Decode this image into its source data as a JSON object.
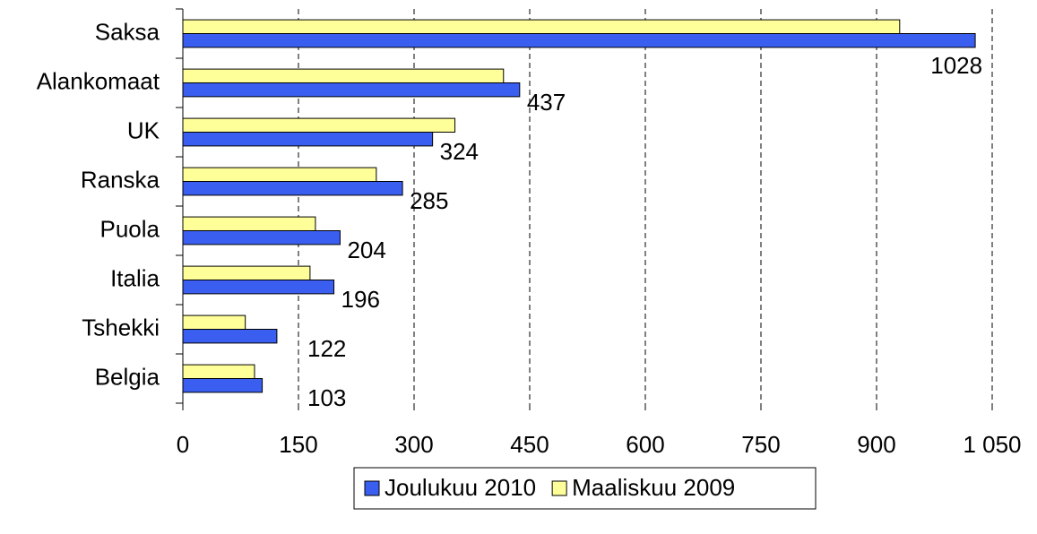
{
  "chart_data": {
    "type": "bar",
    "orientation": "horizontal",
    "categories": [
      "Saksa",
      "Alankomaat",
      "UK",
      "Ranska",
      "Puola",
      "Italia",
      "Tshekki",
      "Belgia"
    ],
    "series": [
      {
        "name": "Joulukuu 2010",
        "color": "#3a5ef0",
        "values": [
          1028,
          437,
          324,
          285,
          204,
          196,
          122,
          103
        ],
        "data_labels": true
      },
      {
        "name": "Maaliskuu 2009",
        "color": "#ffff99",
        "values": [
          930,
          416,
          353,
          251,
          172,
          165,
          81,
          93
        ]
      }
    ],
    "xlim": [
      0,
      1050
    ],
    "xticks": [
      0,
      150,
      300,
      450,
      600,
      750,
      900,
      {
        "value": 1050,
        "label": "1 050"
      }
    ],
    "grid": true,
    "legend": "bottom"
  }
}
